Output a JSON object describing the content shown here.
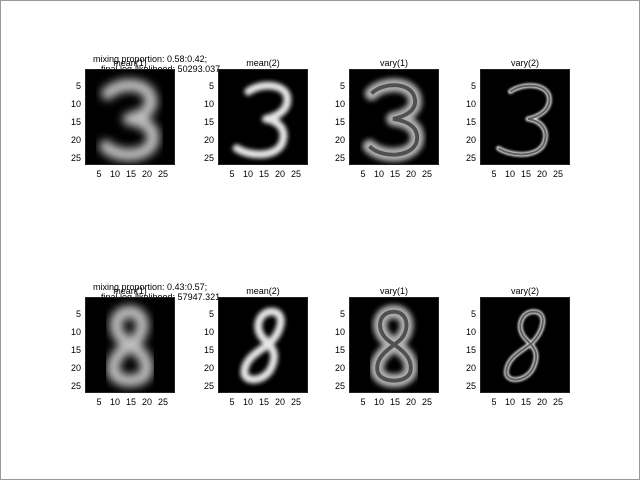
{
  "rows": [
    {
      "header": {
        "mixing": "mixing proportion: 0.58:0.42;",
        "loglik": "final log-likelihood: 50293.037"
      },
      "digit": "3",
      "panels": [
        {
          "title": "mean(1)",
          "style": "blur"
        },
        {
          "title": "mean(2)",
          "style": "sharp"
        },
        {
          "title": "vary(1)",
          "style": "vary"
        },
        {
          "title": "vary(2)",
          "style": "vary-outline"
        }
      ]
    },
    {
      "header": {
        "mixing": "mixing proportion: 0.43:0.57;",
        "loglik": "final log-likelihood: 57947.321"
      },
      "digit": "8",
      "panels": [
        {
          "title": "mean(1)",
          "style": "blur"
        },
        {
          "title": "mean(2)",
          "style": "sharp"
        },
        {
          "title": "vary(1)",
          "style": "vary"
        },
        {
          "title": "vary(2)",
          "style": "vary-outline"
        }
      ]
    }
  ],
  "axis": {
    "yticks": [
      "5",
      "10",
      "15",
      "20",
      "25"
    ],
    "xticks": [
      "5",
      "10",
      "15",
      "20",
      "25"
    ]
  },
  "colors": {
    "background": "#000000",
    "stroke": "#ffffff"
  }
}
